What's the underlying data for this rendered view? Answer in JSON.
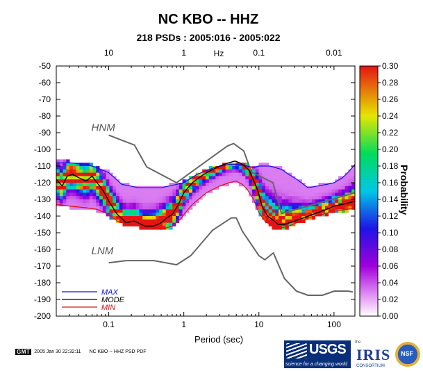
{
  "chart_data": {
    "type": "heatmap",
    "title": "NC KBO -- HHZ",
    "subtitle": "218 PSDs : 2005:016 - 2005:022",
    "xlabel": "Period (sec)",
    "top_axis_label": "Hz",
    "ylabel": "",
    "colorbar_label": "Probability",
    "xscale": "log",
    "xlim": [
      0.02,
      190
    ],
    "ylim": [
      -200,
      -50
    ],
    "x_ticks": [
      {
        "value": 0.1,
        "label": "0.1"
      },
      {
        "value": 1,
        "label": "1"
      },
      {
        "value": 10,
        "label": "10"
      },
      {
        "value": 100,
        "label": "100"
      }
    ],
    "top_ticks": [
      {
        "value": 0.1,
        "label": "10"
      },
      {
        "value": 1,
        "label": "1"
      },
      {
        "value": 10,
        "label": "0.1"
      },
      {
        "value": 100,
        "label": "0.01"
      }
    ],
    "y_ticks": [
      -50,
      -60,
      -70,
      -80,
      -90,
      -100,
      -110,
      -120,
      -130,
      -140,
      -150,
      -160,
      -170,
      -180,
      -190,
      -200
    ],
    "colorbar_ticks": [
      "0.30",
      "0.28",
      "0.26",
      "0.24",
      "0.22",
      "0.20",
      "0.18",
      "0.16",
      "0.14",
      "0.12",
      "0.10",
      "0.08",
      "0.06",
      "0.04",
      "0.02",
      "0.00"
    ],
    "colorbar_range": [
      0,
      0.3
    ],
    "legend": [
      {
        "name": "MAX",
        "color": "#1010e0"
      },
      {
        "name": "MODE",
        "color": "#000000"
      },
      {
        "name": "MIN",
        "color": "#e01010"
      }
    ],
    "model_labels": [
      {
        "text": "HNM",
        "x": 0.04,
        "y": -89
      },
      {
        "text": "LNM",
        "x": 0.04,
        "y": -163
      }
    ],
    "hnm": {
      "x": [
        0.1,
        0.22,
        0.32,
        0.8,
        3.8,
        4.6,
        6.3,
        7.9,
        15.4,
        20,
        354
      ],
      "y": [
        -91.5,
        -97.4,
        -110.5,
        -120,
        -98,
        -96.5,
        -101,
        -113.5,
        -120,
        -138.5,
        -126
      ]
    },
    "lnm": {
      "x": [
        0.1,
        0.17,
        0.4,
        0.8,
        1.24,
        2.4,
        4.3,
        5,
        6,
        10,
        12,
        15.6,
        21.9,
        31.6,
        45,
        70,
        101,
        154,
        178
      ],
      "y": [
        -168,
        -166.7,
        -166.7,
        -169.2,
        -163.7,
        -148.6,
        -141.1,
        -141.1,
        -149,
        -163.8,
        -166.2,
        -162.1,
        -177.5,
        -185,
        -187.5,
        -187.5,
        -185,
        -185,
        -185.5
      ]
    },
    "mode": {
      "x": [
        0.02,
        0.024,
        0.028,
        0.033,
        0.04,
        0.05,
        0.06,
        0.07,
        0.085,
        0.1,
        0.13,
        0.17,
        0.22,
        0.3,
        0.4,
        0.5,
        0.6,
        0.7,
        0.85,
        1,
        1.3,
        1.7,
        2.2,
        3,
        4,
        4.8,
        5.5,
        6.5,
        7.5,
        8,
        9,
        10,
        11,
        13,
        15,
        18,
        22,
        30,
        40,
        60,
        80,
        100,
        130,
        160,
        190
      ],
      "y": [
        -118,
        -122,
        -116,
        -115,
        -117,
        -119,
        -116,
        -120,
        -125,
        -131,
        -139,
        -144,
        -143,
        -146,
        -146,
        -144,
        -141,
        -139,
        -133,
        -126,
        -120,
        -116,
        -113,
        -110,
        -108,
        -107,
        -108,
        -110,
        -113,
        -116,
        -121,
        -127,
        -134,
        -140,
        -142,
        -145,
        -145,
        -143,
        -141,
        -138,
        -136,
        -134,
        -133,
        -132,
        -131
      ]
    },
    "max": {
      "x": [
        0.02,
        0.03,
        0.05,
        0.07,
        0.1,
        0.15,
        0.25,
        0.5,
        0.8,
        1,
        1.5,
        2.5,
        4,
        5.5,
        7,
        8.5,
        10,
        14,
        20,
        25,
        32,
        45,
        60,
        80,
        100,
        130,
        160,
        190
      ],
      "y": [
        -108,
        -108,
        -109,
        -111,
        -114,
        -121,
        -123,
        -123,
        -121,
        -120,
        -115,
        -111,
        -109,
        -109,
        -110,
        -111,
        -110,
        -110,
        -112,
        -115,
        -118,
        -123,
        -122,
        -121,
        -120,
        -117,
        -113,
        -109
      ]
    },
    "min": {
      "x": [
        0.02,
        0.03,
        0.05,
        0.07,
        0.1,
        0.13,
        0.18,
        0.25,
        0.35,
        0.5,
        0.7,
        0.9,
        1,
        1.3,
        2,
        3,
        4,
        5,
        6,
        7,
        8.5,
        10,
        12,
        15,
        20,
        25,
        32,
        45,
        70,
        100,
        150,
        190
      ],
      "y": [
        -133,
        -134,
        -135,
        -136,
        -139,
        -143,
        -145,
        -146,
        -147,
        -148,
        -146,
        -142,
        -139,
        -133,
        -126,
        -122,
        -120,
        -119,
        -121,
        -124,
        -130,
        -138,
        -143,
        -146,
        -147,
        -146,
        -144,
        -141,
        -139,
        -137,
        -136,
        -135
      ]
    }
  },
  "footer": {
    "gmt_badge": "GMT",
    "timestamp": "2005 Jan 30 22:32:11",
    "file_label": "NC KBO -- HHZ PSD PDF"
  },
  "logos": {
    "usgs_text": "USGS",
    "usgs_tagline": "science for a changing world",
    "iris_the": "the",
    "iris_text": "IRIS",
    "iris_sub": "CONSORTIUM",
    "nsf_text": "NSF"
  }
}
